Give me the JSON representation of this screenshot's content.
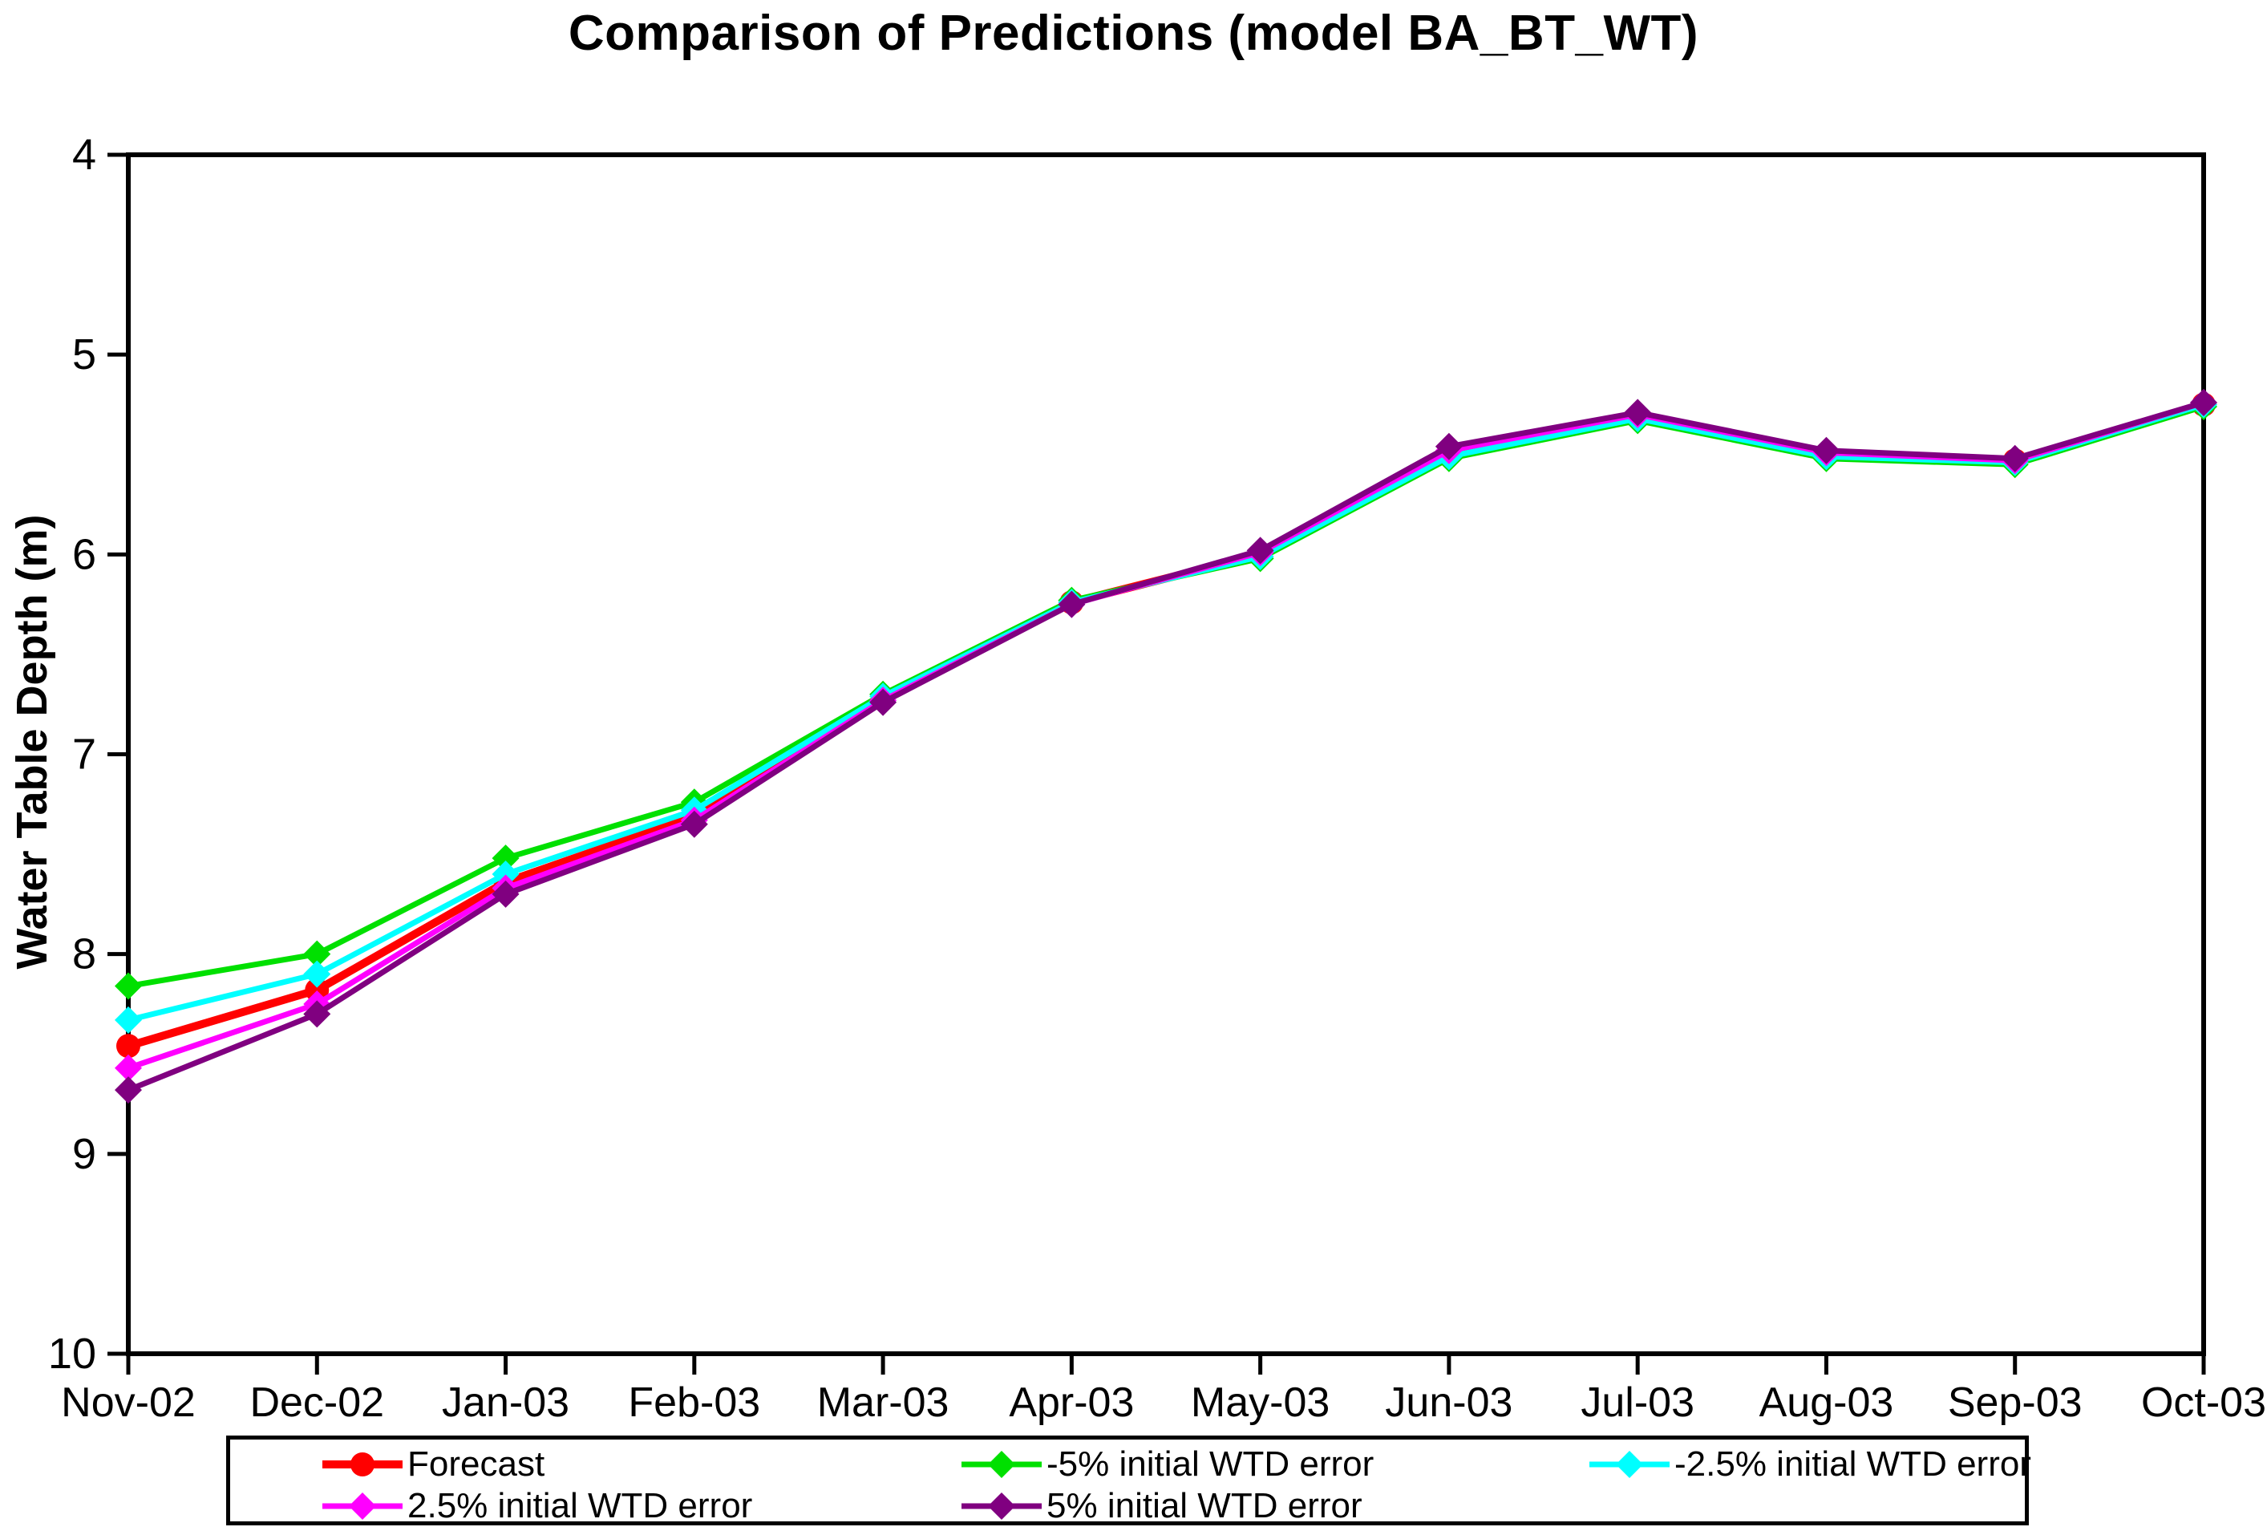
{
  "page": {
    "background": "#FFFFFF",
    "axis_color": "#000000"
  },
  "chart_data": {
    "type": "line",
    "title": "Comparison of Predictions (model BA_BT_WT)",
    "xlabel": "",
    "ylabel": "Water Table Depth (m)",
    "x_categories": [
      "Nov-02",
      "Dec-02",
      "Jan-03",
      "Feb-03",
      "Mar-03",
      "Apr-03",
      "May-03",
      "Jun-03",
      "Jul-03",
      "Aug-03",
      "Sep-03",
      "Oct-03"
    ],
    "ylim": [
      4,
      10
    ],
    "y_ticks": [
      4,
      5,
      6,
      7,
      8,
      9,
      10
    ],
    "y_increases_downward": true,
    "grid": false,
    "plot_frame": true,
    "legend_position": "bottom",
    "series": [
      {
        "name": "Forecast",
        "color": "#FF0000",
        "marker": "circle",
        "line_weight": "thick",
        "values": [
          8.46,
          8.18,
          7.64,
          7.31,
          6.72,
          6.24,
          6.0,
          5.49,
          5.31,
          5.5,
          5.53,
          5.25
        ]
      },
      {
        "name": "-5% initial WTD error",
        "color": "#00E000",
        "marker": "diamond",
        "line_weight": "normal",
        "values": [
          8.16,
          8.0,
          7.52,
          7.24,
          6.7,
          6.23,
          6.02,
          5.52,
          5.33,
          5.52,
          5.55,
          5.26
        ]
      },
      {
        "name": "-2.5% initial WTD error",
        "color": "#00FFFF",
        "marker": "diamond",
        "line_weight": "normal",
        "values": [
          8.33,
          8.1,
          7.6,
          7.28,
          6.71,
          6.24,
          6.01,
          5.51,
          5.32,
          5.51,
          5.54,
          5.25
        ]
      },
      {
        "name": "2.5% initial WTD error",
        "color": "#FF00FF",
        "marker": "diamond",
        "line_weight": "normal",
        "values": [
          8.57,
          8.25,
          7.67,
          7.33,
          6.73,
          6.25,
          5.99,
          5.48,
          5.3,
          5.49,
          5.53,
          5.24
        ]
      },
      {
        "name": "5% initial WTD error",
        "color": "#800080",
        "marker": "diamond",
        "line_weight": "normal",
        "values": [
          8.68,
          8.3,
          7.7,
          7.35,
          6.74,
          6.25,
          5.98,
          5.46,
          5.29,
          5.48,
          5.52,
          5.24
        ]
      }
    ]
  }
}
